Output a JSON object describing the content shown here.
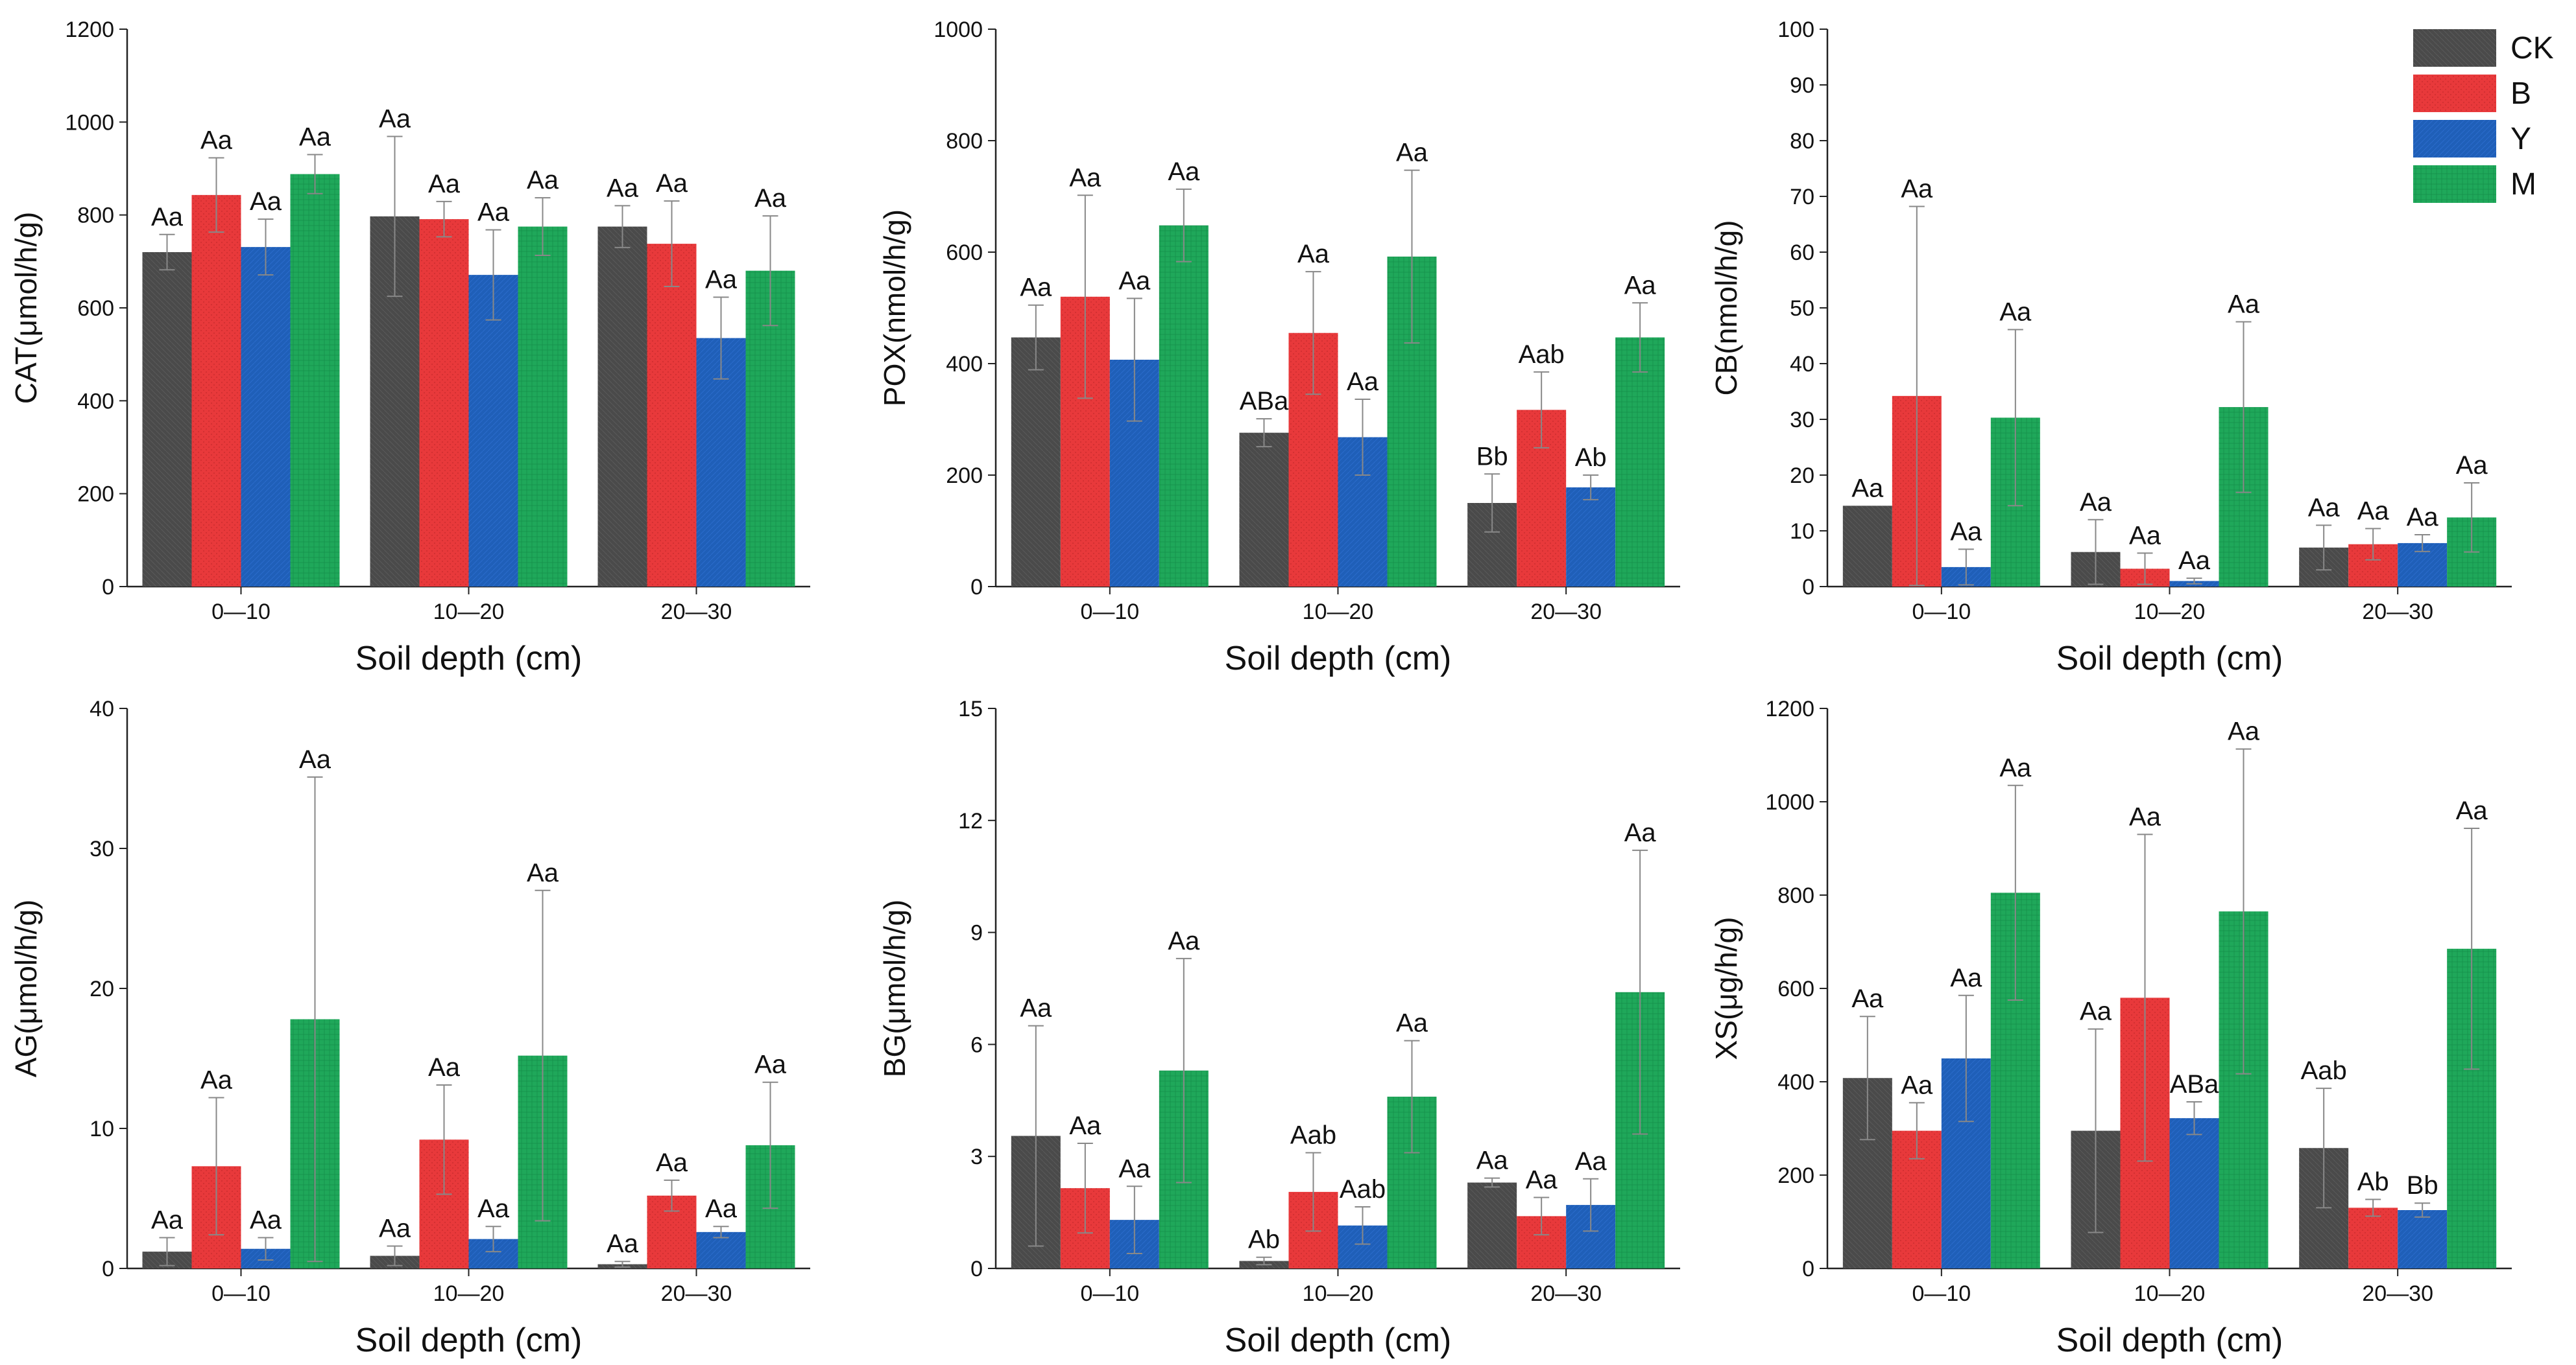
{
  "colors": {
    "CK": "#4a4a4a",
    "B": "#e8393b",
    "Y": "#1f5fb8",
    "M": "#1fa85a",
    "error": "#888888",
    "axis": "#222222"
  },
  "legend": {
    "entries": [
      "CK",
      "B",
      "Y",
      "M"
    ]
  },
  "chart_data": [
    {
      "type": "bar",
      "id": "CAT",
      "ylabel": "CAT(μmol/h/g)",
      "xlabel": "Soil depth (cm)",
      "categories": [
        "0—10",
        "10—20",
        "20—30"
      ],
      "ylim": [
        0,
        1200
      ],
      "yticks": [
        0,
        200,
        400,
        600,
        800,
        1000,
        1200
      ],
      "series": [
        {
          "name": "CK",
          "values": [
            720,
            797,
            775
          ],
          "errors": [
            38,
            172,
            45
          ],
          "letters": [
            "Aa",
            "Aa",
            "Aa"
          ]
        },
        {
          "name": "B",
          "values": [
            843,
            791,
            738
          ],
          "errors": [
            80,
            38,
            92
          ],
          "letters": [
            "Aa",
            "Aa",
            "Aa"
          ]
        },
        {
          "name": "Y",
          "values": [
            731,
            671,
            535
          ],
          "errors": [
            60,
            97,
            88
          ],
          "letters": [
            "Aa",
            "Aa",
            "Aa"
          ]
        },
        {
          "name": "M",
          "values": [
            888,
            775,
            680
          ],
          "errors": [
            42,
            62,
            118
          ],
          "letters": [
            "Aa",
            "Aa",
            "Aa"
          ]
        }
      ]
    },
    {
      "type": "bar",
      "id": "POX",
      "ylabel": "POX(nmol/h/g)",
      "xlabel": "Soil depth (cm)",
      "categories": [
        "0—10",
        "10—20",
        "20—30"
      ],
      "ylim": [
        0,
        1000
      ],
      "yticks": [
        0,
        200,
        400,
        600,
        800,
        1000
      ],
      "series": [
        {
          "name": "CK",
          "values": [
            447,
            276,
            150
          ],
          "errors": [
            58,
            25,
            52
          ],
          "letters": [
            "Aa",
            "ABa",
            "Bb"
          ]
        },
        {
          "name": "B",
          "values": [
            520,
            455,
            317
          ],
          "errors": [
            182,
            110,
            68
          ],
          "letters": [
            "Aa",
            "Aa",
            "Aab"
          ]
        },
        {
          "name": "Y",
          "values": [
            407,
            268,
            178
          ],
          "errors": [
            110,
            68,
            22
          ],
          "letters": [
            "Aa",
            "Aa",
            "Ab"
          ]
        },
        {
          "name": "M",
          "values": [
            648,
            592,
            447
          ],
          "errors": [
            65,
            155,
            62
          ],
          "letters": [
            "Aa",
            "Aa",
            "Aa"
          ]
        }
      ]
    },
    {
      "type": "bar",
      "id": "CB",
      "ylabel": "CB(nmol/h/g)",
      "xlabel": "Soil depth (cm)",
      "categories": [
        "0—10",
        "10—20",
        "20—30"
      ],
      "ylim": [
        0,
        100
      ],
      "yticks": [
        0,
        10,
        20,
        30,
        40,
        50,
        60,
        70,
        80,
        90,
        100
      ],
      "series": [
        {
          "name": "CK",
          "values": [
            14.5,
            6.2,
            7.0
          ],
          "errors": [
            0,
            5.8,
            4.0
          ],
          "letters": [
            "Aa",
            "Aa",
            "Aa"
          ]
        },
        {
          "name": "B",
          "values": [
            34.2,
            3.2,
            7.6
          ],
          "errors": [
            34.0,
            2.8,
            2.8
          ],
          "letters": [
            "Aa",
            "Aa",
            "Aa"
          ]
        },
        {
          "name": "Y",
          "values": [
            3.5,
            1.0,
            7.8
          ],
          "errors": [
            3.2,
            0.5,
            1.5
          ],
          "letters": [
            "Aa",
            "Aa",
            "Aa"
          ]
        },
        {
          "name": "M",
          "values": [
            30.3,
            32.2,
            12.4
          ],
          "errors": [
            15.8,
            15.3,
            6.2
          ],
          "letters": [
            "Aa",
            "Aa",
            "Aa"
          ]
        }
      ]
    },
    {
      "type": "bar",
      "id": "AG",
      "ylabel": "AG(μmol/h/g)",
      "xlabel": "Soil depth (cm)",
      "categories": [
        "0—10",
        "10—20",
        "20—30"
      ],
      "ylim": [
        0,
        40
      ],
      "yticks": [
        0,
        10,
        20,
        30,
        40
      ],
      "series": [
        {
          "name": "CK",
          "values": [
            1.2,
            0.9,
            0.3
          ],
          "errors": [
            1.0,
            0.7,
            0.2
          ],
          "letters": [
            "Aa",
            "Aa",
            "Aa"
          ]
        },
        {
          "name": "B",
          "values": [
            7.3,
            9.2,
            5.2
          ],
          "errors": [
            4.9,
            3.9,
            1.1
          ],
          "letters": [
            "Aa",
            "Aa",
            "Aa"
          ]
        },
        {
          "name": "Y",
          "values": [
            1.4,
            2.1,
            2.6
          ],
          "errors": [
            0.8,
            0.9,
            0.4
          ],
          "letters": [
            "Aa",
            "Aa",
            "Aa"
          ]
        },
        {
          "name": "M",
          "values": [
            17.8,
            15.2,
            8.8
          ],
          "errors": [
            17.3,
            11.8,
            4.5
          ],
          "letters": [
            "Aa",
            "Aa",
            "Aa"
          ]
        }
      ]
    },
    {
      "type": "bar",
      "id": "BG",
      "ylabel": "BG(μmol/h/g)",
      "xlabel": "Soil depth (cm)",
      "categories": [
        "0—10",
        "10—20",
        "20—30"
      ],
      "ylim": [
        0,
        15
      ],
      "yticks": [
        0,
        3,
        6,
        9,
        12,
        15
      ],
      "series": [
        {
          "name": "CK",
          "values": [
            3.55,
            0.2,
            2.3
          ],
          "errors": [
            2.95,
            0.1,
            0.12
          ],
          "letters": [
            "Aa",
            "Ab",
            "Aa"
          ]
        },
        {
          "name": "B",
          "values": [
            2.15,
            2.05,
            1.4
          ],
          "errors": [
            1.2,
            1.05,
            0.5
          ],
          "letters": [
            "Aa",
            "Aab",
            "Aa"
          ]
        },
        {
          "name": "Y",
          "values": [
            1.3,
            1.15,
            1.7
          ],
          "errors": [
            0.9,
            0.5,
            0.7
          ],
          "letters": [
            "Aa",
            "Aab",
            "Aa"
          ]
        },
        {
          "name": "M",
          "values": [
            5.3,
            4.6,
            7.4
          ],
          "errors": [
            3.0,
            1.5,
            3.8
          ],
          "letters": [
            "Aa",
            "Aa",
            "Aa"
          ]
        }
      ]
    },
    {
      "type": "bar",
      "id": "XS",
      "ylabel": "XS(μg/h/g)",
      "xlabel": "Soil depth (cm)",
      "categories": [
        "0—10",
        "10—20",
        "20—30"
      ],
      "ylim": [
        0,
        1200
      ],
      "yticks": [
        0,
        200,
        400,
        600,
        800,
        1000,
        1200
      ],
      "series": [
        {
          "name": "CK",
          "values": [
            408,
            295,
            258
          ],
          "errors": [
            132,
            218,
            128
          ],
          "letters": [
            "Aa",
            "Aa",
            "Aab"
          ]
        },
        {
          "name": "B",
          "values": [
            295,
            580,
            130
          ],
          "errors": [
            60,
            350,
            18
          ],
          "letters": [
            "Aa",
            "Aa",
            "Ab"
          ]
        },
        {
          "name": "Y",
          "values": [
            450,
            322,
            125
          ],
          "errors": [
            135,
            35,
            15
          ],
          "letters": [
            "Aa",
            "ABa",
            "Bb"
          ]
        },
        {
          "name": "M",
          "values": [
            805,
            765,
            685
          ],
          "errors": [
            230,
            348,
            258
          ],
          "letters": [
            "Aa",
            "Aa",
            "Aa"
          ]
        }
      ]
    }
  ]
}
